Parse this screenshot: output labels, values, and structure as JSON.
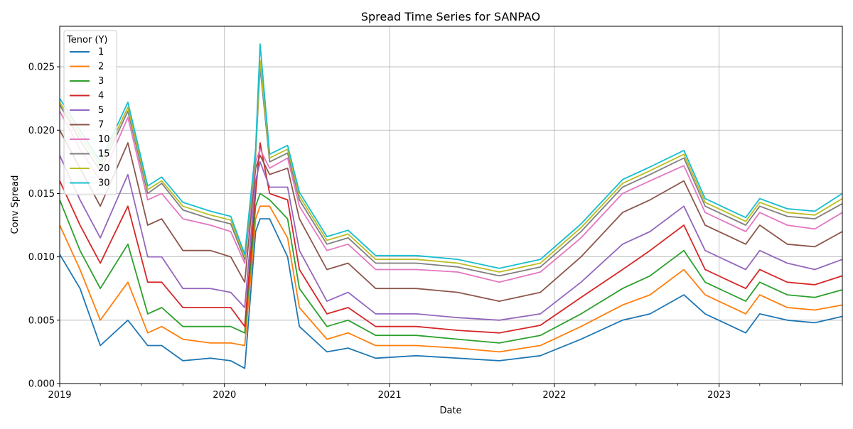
{
  "chart_data": {
    "type": "line",
    "title": "Spread Time Series for SANPAO",
    "xlabel": "Date",
    "ylabel": "Conv Spread",
    "xlim": [
      "2019-01-01",
      "2023-10-01"
    ],
    "ylim": [
      0.0,
      0.0282
    ],
    "yticks": [
      0.0,
      0.005,
      0.01,
      0.015,
      0.02,
      0.025
    ],
    "ytick_labels": [
      "0.000",
      "0.005",
      "0.010",
      "0.015",
      "0.020",
      "0.025"
    ],
    "xticks": [
      "2019-01-01",
      "2020-01-01",
      "2021-01-01",
      "2022-01-01",
      "2023-01-01"
    ],
    "xtick_labels": [
      "2019",
      "2020",
      "2021",
      "2022",
      "2023"
    ],
    "grid": true,
    "legend": {
      "title": "Tenor (Y)",
      "placement": "upper-left"
    },
    "x": [
      "2019-01-01",
      "2019-02-15",
      "2019-04-01",
      "2019-06-01",
      "2019-07-15",
      "2019-08-15",
      "2019-10-01",
      "2019-12-01",
      "2020-01-15",
      "2020-02-15",
      "2020-03-10",
      "2020-03-20",
      "2020-04-10",
      "2020-05-20",
      "2020-06-15",
      "2020-08-15",
      "2020-10-01",
      "2020-12-01",
      "2021-03-01",
      "2021-06-01",
      "2021-09-01",
      "2021-12-01",
      "2022-03-01",
      "2022-06-01",
      "2022-08-01",
      "2022-10-15",
      "2022-12-01",
      "2023-03-01",
      "2023-04-01",
      "2023-06-01",
      "2023-08-01",
      "2023-10-01"
    ],
    "series": [
      {
        "name": "1",
        "color": "#1f77b4",
        "values": [
          0.0102,
          0.0075,
          0.003,
          0.005,
          0.003,
          0.003,
          0.0018,
          0.002,
          0.0018,
          0.0012,
          0.012,
          0.013,
          0.013,
          0.01,
          0.0045,
          0.0025,
          0.0028,
          0.002,
          0.0022,
          0.002,
          0.0018,
          0.0022,
          0.0035,
          0.005,
          0.0055,
          0.007,
          0.0055,
          0.004,
          0.0055,
          0.005,
          0.0048,
          0.0053
        ]
      },
      {
        "name": "2",
        "color": "#ff7f0e",
        "values": [
          0.0125,
          0.009,
          0.005,
          0.008,
          0.004,
          0.0045,
          0.0035,
          0.0032,
          0.0032,
          0.003,
          0.013,
          0.014,
          0.014,
          0.0115,
          0.006,
          0.0035,
          0.004,
          0.003,
          0.003,
          0.0028,
          0.0025,
          0.003,
          0.0045,
          0.0062,
          0.007,
          0.009,
          0.007,
          0.0055,
          0.007,
          0.006,
          0.0058,
          0.0062
        ]
      },
      {
        "name": "3",
        "color": "#2ca02c",
        "values": [
          0.0145,
          0.0105,
          0.0075,
          0.011,
          0.0055,
          0.006,
          0.0045,
          0.0045,
          0.0045,
          0.004,
          0.014,
          0.015,
          0.0145,
          0.013,
          0.0075,
          0.0045,
          0.005,
          0.0038,
          0.0038,
          0.0035,
          0.0032,
          0.0038,
          0.0055,
          0.0075,
          0.0085,
          0.0105,
          0.008,
          0.0065,
          0.008,
          0.007,
          0.0068,
          0.0074
        ]
      },
      {
        "name": "4",
        "color": "#d62728",
        "values": [
          0.016,
          0.0125,
          0.0095,
          0.014,
          0.008,
          0.008,
          0.006,
          0.006,
          0.006,
          0.0045,
          0.015,
          0.019,
          0.015,
          0.0145,
          0.009,
          0.0055,
          0.006,
          0.0045,
          0.0045,
          0.0042,
          0.004,
          0.0046,
          0.0068,
          0.009,
          0.0105,
          0.0125,
          0.009,
          0.0075,
          0.009,
          0.008,
          0.0078,
          0.0085
        ]
      },
      {
        "name": "5",
        "color": "#9467bd",
        "values": [
          0.018,
          0.0145,
          0.0115,
          0.0165,
          0.01,
          0.01,
          0.0075,
          0.0075,
          0.0072,
          0.006,
          0.016,
          0.0175,
          0.0155,
          0.0155,
          0.0105,
          0.0065,
          0.0072,
          0.0055,
          0.0055,
          0.0052,
          0.005,
          0.0055,
          0.008,
          0.011,
          0.012,
          0.014,
          0.0105,
          0.009,
          0.0105,
          0.0095,
          0.009,
          0.0098
        ]
      },
      {
        "name": "7",
        "color": "#8c564b",
        "values": [
          0.02,
          0.017,
          0.014,
          0.019,
          0.0125,
          0.013,
          0.0105,
          0.0105,
          0.01,
          0.008,
          0.017,
          0.018,
          0.0165,
          0.017,
          0.013,
          0.009,
          0.0095,
          0.0075,
          0.0075,
          0.0072,
          0.0065,
          0.0072,
          0.01,
          0.0135,
          0.0145,
          0.016,
          0.0125,
          0.011,
          0.0125,
          0.011,
          0.0108,
          0.012
        ]
      },
      {
        "name": "10",
        "color": "#e377c2",
        "values": [
          0.0215,
          0.0185,
          0.016,
          0.021,
          0.0145,
          0.015,
          0.013,
          0.0125,
          0.012,
          0.0095,
          0.0175,
          0.0185,
          0.017,
          0.0178,
          0.014,
          0.0105,
          0.011,
          0.009,
          0.009,
          0.0088,
          0.008,
          0.0088,
          0.0115,
          0.015,
          0.016,
          0.0172,
          0.0135,
          0.012,
          0.0135,
          0.0125,
          0.0122,
          0.0135
        ]
      },
      {
        "name": "15",
        "color": "#7f7f7f",
        "values": [
          0.022,
          0.0192,
          0.0168,
          0.0215,
          0.015,
          0.0158,
          0.0137,
          0.013,
          0.0126,
          0.0098,
          0.018,
          0.025,
          0.0175,
          0.0182,
          0.0145,
          0.011,
          0.0115,
          0.0095,
          0.0095,
          0.0092,
          0.0085,
          0.0092,
          0.012,
          0.0155,
          0.0165,
          0.0178,
          0.014,
          0.0125,
          0.014,
          0.0132,
          0.013,
          0.0142
        ]
      },
      {
        "name": "20",
        "color": "#bcbd22",
        "values": [
          0.0222,
          0.0196,
          0.0172,
          0.0218,
          0.0153,
          0.016,
          0.014,
          0.0133,
          0.0129,
          0.01,
          0.0182,
          0.0255,
          0.0178,
          0.0185,
          0.0148,
          0.0113,
          0.0118,
          0.0098,
          0.0098,
          0.0095,
          0.0088,
          0.0095,
          0.0123,
          0.0158,
          0.0168,
          0.0181,
          0.0143,
          0.0128,
          0.0143,
          0.0135,
          0.0133,
          0.0146
        ]
      },
      {
        "name": "30",
        "color": "#17becf",
        "values": [
          0.0225,
          0.02,
          0.0175,
          0.0222,
          0.0156,
          0.0163,
          0.0143,
          0.0136,
          0.0132,
          0.0102,
          0.0185,
          0.0268,
          0.0181,
          0.0188,
          0.0151,
          0.0116,
          0.0121,
          0.0101,
          0.0101,
          0.0098,
          0.0091,
          0.0098,
          0.0126,
          0.0161,
          0.0171,
          0.0184,
          0.0146,
          0.0131,
          0.0146,
          0.0138,
          0.0136,
          0.015
        ]
      }
    ]
  }
}
